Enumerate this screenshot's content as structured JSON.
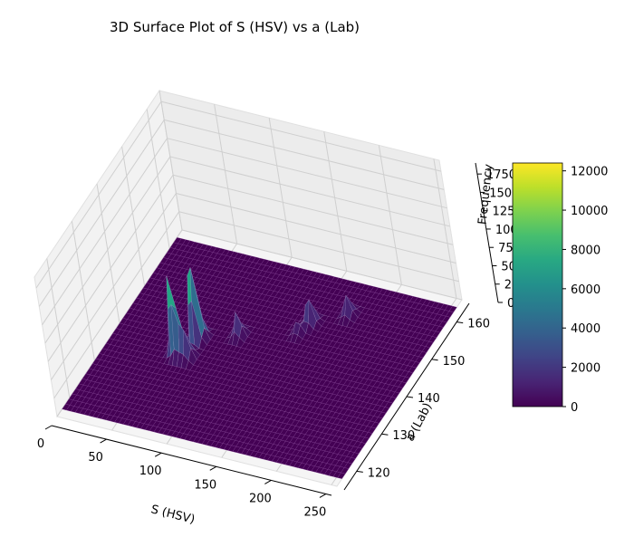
{
  "chart_data": {
    "type": "surface3d",
    "title": "3D Surface Plot of S (HSV) vs a (Lab)",
    "xlabel": "S (HSV)",
    "ylabel": "a (Lab)",
    "zlabel": "Frequency",
    "xlim": [
      0,
      255
    ],
    "ylim": [
      115,
      165
    ],
    "zlim": [
      0,
      19000
    ],
    "x_ticks": [
      "0",
      "50",
      "100",
      "150",
      "200",
      "250"
    ],
    "y_ticks": [
      "120",
      "130",
      "140",
      "150",
      "160"
    ],
    "z_ticks": [
      "0",
      "2500",
      "5000",
      "7500",
      "10000",
      "12500",
      "15000",
      "17500"
    ],
    "colormap": "viridis",
    "colorbar": {
      "min": 0,
      "max": 12400,
      "ticks": [
        "0",
        "2000",
        "4000",
        "6000",
        "8000",
        "10000",
        "12000"
      ]
    },
    "grid": true,
    "peaks": [
      {
        "x": 70,
        "y": 141,
        "z": 12400
      },
      {
        "x": 60,
        "y": 137,
        "z": 10200
      },
      {
        "x": 65,
        "y": 136,
        "z": 5200
      },
      {
        "x": 72,
        "y": 136,
        "z": 3500
      },
      {
        "x": 100,
        "y": 144,
        "z": 3200
      },
      {
        "x": 150,
        "y": 151,
        "z": 3800
      },
      {
        "x": 175,
        "y": 155,
        "z": 2800
      },
      {
        "x": 145,
        "y": 148,
        "z": 1600
      }
    ]
  }
}
